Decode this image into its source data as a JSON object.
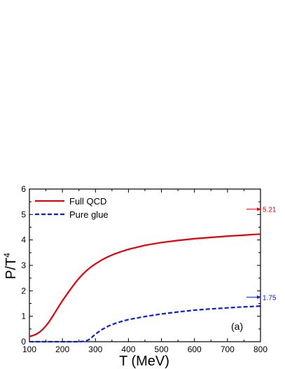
{
  "chart_data": {
    "type": "line",
    "xlabel": "T (MeV)",
    "ylabel_main": "P/T",
    "ylabel_sup": "4",
    "xlim": [
      100,
      800
    ],
    "ylim": [
      0,
      6
    ],
    "xticks": [
      100,
      200,
      300,
      400,
      500,
      600,
      700,
      800
    ],
    "yticks": [
      0,
      1,
      2,
      3,
      4,
      5,
      6
    ],
    "legend_position": "top-left",
    "panel_label": "(a)",
    "series": [
      {
        "name": "Full QCD",
        "color": "#e8000b",
        "dash": "solid",
        "x": [
          100,
          110,
          120,
          130,
          140,
          150,
          160,
          170,
          180,
          190,
          200,
          210,
          220,
          230,
          240,
          250,
          260,
          270,
          280,
          290,
          300,
          320,
          340,
          360,
          380,
          400,
          450,
          500,
          550,
          600,
          650,
          700,
          750,
          800
        ],
        "y": [
          0.21,
          0.24,
          0.29,
          0.37,
          0.48,
          0.62,
          0.79,
          0.99,
          1.2,
          1.41,
          1.61,
          1.8,
          1.98,
          2.16,
          2.33,
          2.49,
          2.63,
          2.76,
          2.87,
          2.97,
          3.06,
          3.22,
          3.35,
          3.46,
          3.55,
          3.63,
          3.79,
          3.9,
          3.98,
          4.05,
          4.1,
          4.15,
          4.19,
          4.23
        ]
      },
      {
        "name": "Pure glue",
        "color": "#0a1fd6",
        "dash": "dashed",
        "x": [
          100,
          150,
          200,
          250,
          270,
          280,
          290,
          300,
          320,
          340,
          360,
          380,
          400,
          450,
          500,
          550,
          600,
          650,
          700,
          750,
          800
        ],
        "y": [
          0.0,
          0.0,
          0.0,
          0.0,
          0.02,
          0.08,
          0.18,
          0.3,
          0.48,
          0.62,
          0.72,
          0.8,
          0.87,
          0.99,
          1.09,
          1.17,
          1.24,
          1.29,
          1.33,
          1.37,
          1.4
        ]
      }
    ],
    "annotations": [
      {
        "text": "5.21",
        "value": 5.21,
        "color": "#e8000b"
      },
      {
        "text": "1.75",
        "value": 1.75,
        "color": "#0a1fd6"
      }
    ]
  }
}
